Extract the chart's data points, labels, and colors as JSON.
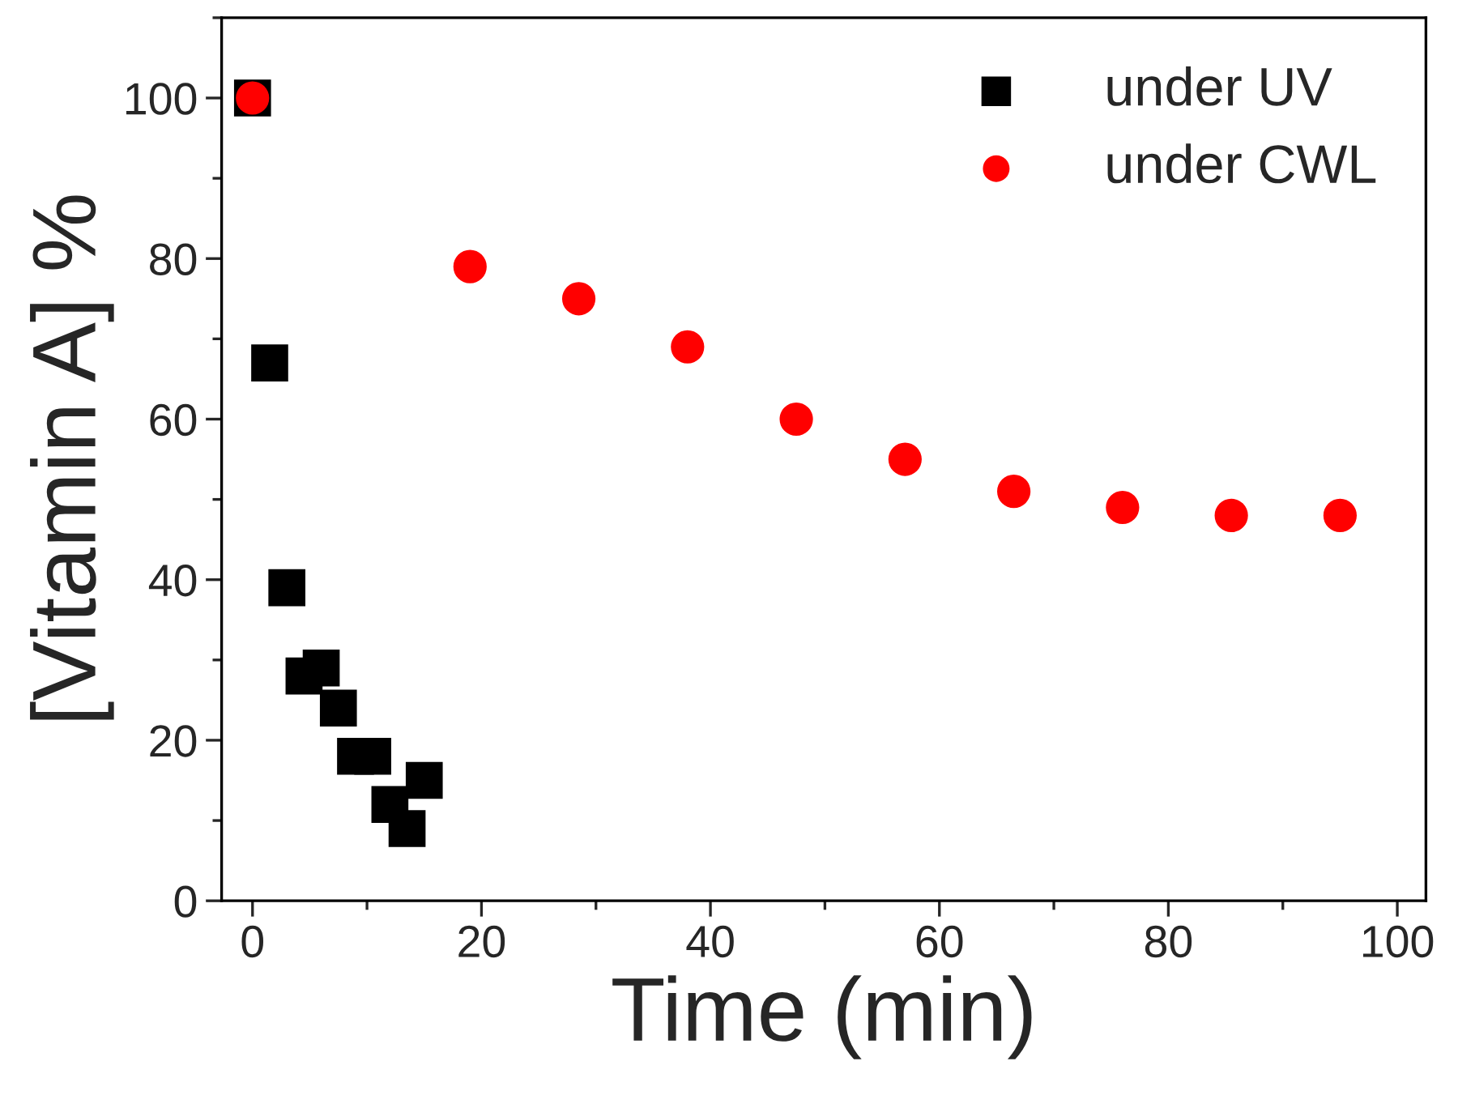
{
  "chart_data": {
    "type": "scatter",
    "xlabel": "Time (min)",
    "ylabel": "[Vitamin A] %",
    "xlim": [
      -2.7,
      102.5
    ],
    "ylim": [
      0,
      110
    ],
    "xticks": [
      0,
      20,
      40,
      60,
      80,
      100
    ],
    "yticks": [
      0,
      20,
      40,
      60,
      80,
      100
    ],
    "grid": false,
    "legend": "top right",
    "series": [
      {
        "name": "under UV",
        "color": "#000000",
        "marker": "square",
        "x": [
          0,
          1.5,
          3,
          4.5,
          6,
          7.5,
          9,
          10.5,
          12,
          13.5,
          15
        ],
        "values": [
          100,
          67,
          39,
          28,
          29,
          24,
          18,
          18,
          12,
          9,
          15
        ]
      },
      {
        "name": "under CWL",
        "color": "#ff0000",
        "marker": "circle",
        "x": [
          0,
          19,
          28.5,
          38,
          47.5,
          57,
          66.5,
          76,
          85.5,
          95
        ],
        "values": [
          100,
          79,
          75,
          69,
          60,
          55,
          51,
          49,
          48,
          48
        ]
      }
    ]
  }
}
